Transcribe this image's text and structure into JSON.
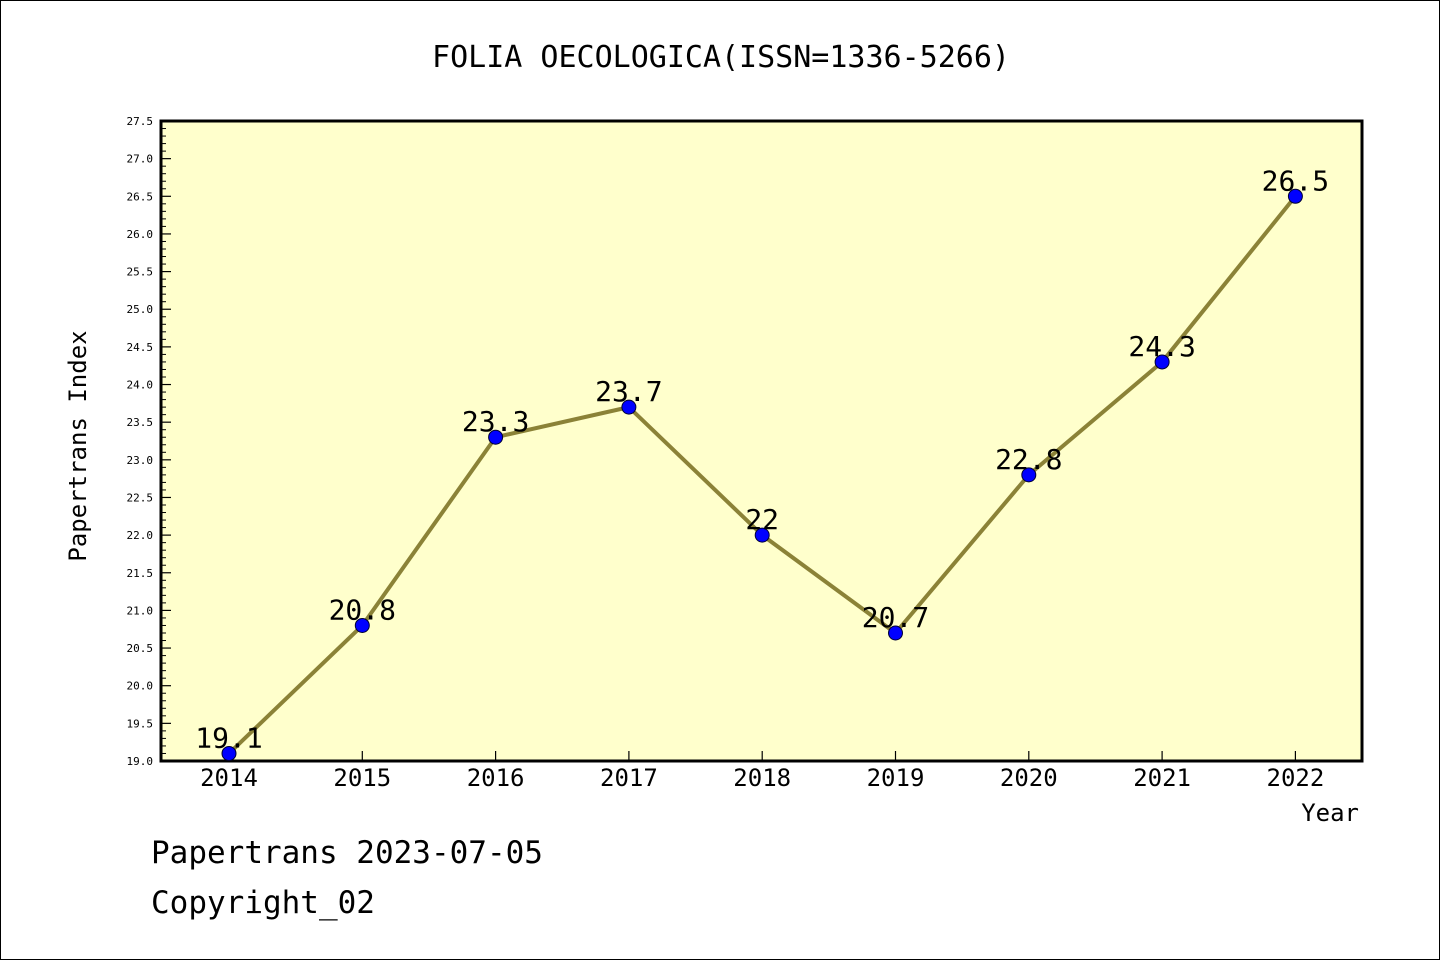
{
  "chart_data": {
    "type": "line",
    "title": "FOLIA OECOLOGICA(ISSN=1336-5266)",
    "xlabel": "Year",
    "ylabel": "Papertrans Index",
    "categories": [
      "2014",
      "2015",
      "2016",
      "2017",
      "2018",
      "2019",
      "2020",
      "2021",
      "2022"
    ],
    "series": [
      {
        "values": [
          19.1,
          20.8,
          23.3,
          23.7,
          22,
          20.7,
          22.8,
          24.3,
          26.5
        ],
        "labels": [
          "19.1",
          "20.8",
          "23.3",
          "23.7",
          "22",
          "20.7",
          "22.8",
          "24.3",
          "26.5"
        ]
      }
    ],
    "ylim": [
      19.0,
      27.5
    ],
    "yticks": [
      "19.0",
      "19.5",
      "20.0",
      "20.5",
      "21.0",
      "21.5",
      "22.0",
      "22.5",
      "23.0",
      "23.5",
      "24.0",
      "24.5",
      "25.0",
      "25.5",
      "26.0",
      "26.5",
      "27.0",
      "27.5"
    ],
    "grid": false,
    "colors": {
      "plot_background": "#ffffcc",
      "line": "#8b8237",
      "marker": "#0000ff",
      "axes": "#000000"
    }
  },
  "footer": {
    "line1": "Papertrans 2023-07-05",
    "line2": "Copyright_02"
  }
}
